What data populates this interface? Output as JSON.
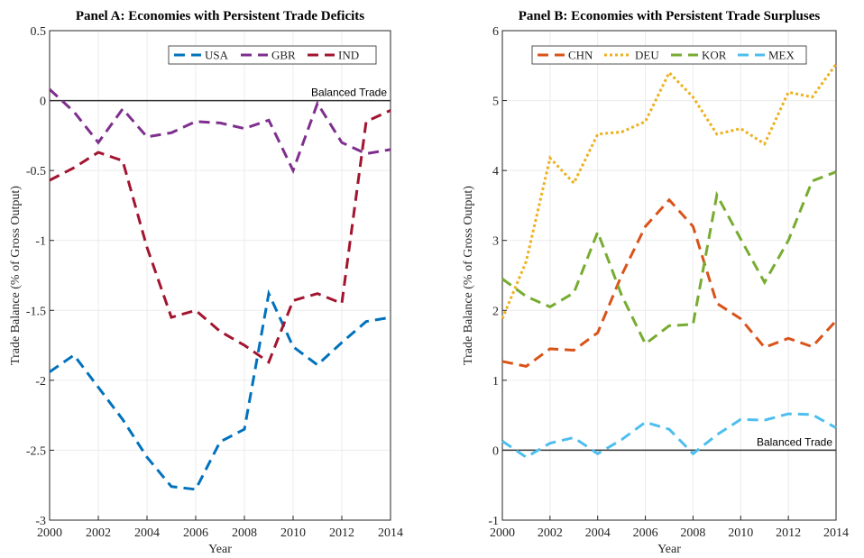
{
  "chart_data": [
    {
      "type": "line",
      "title": "Panel A: Economies with Persistent Trade Deficits",
      "xlabel": "Year",
      "ylabel": "Trade Balance (% of Gross Output)",
      "x": [
        2000,
        2001,
        2002,
        2003,
        2004,
        2005,
        2006,
        2007,
        2008,
        2009,
        2010,
        2011,
        2012,
        2013,
        2014
      ],
      "series": [
        {
          "name": "USA",
          "color": "#0072BD",
          "dash": "dashed",
          "values": [
            -1.94,
            -1.82,
            -2.05,
            -2.28,
            -2.55,
            -2.76,
            -2.78,
            -2.44,
            -2.35,
            -1.38,
            -1.76,
            -1.89,
            -1.73,
            -1.58,
            -1.55
          ]
        },
        {
          "name": "GBR",
          "color": "#7E2F8E",
          "dash": "dashed",
          "values": [
            0.08,
            -0.08,
            -0.3,
            -0.06,
            -0.26,
            -0.23,
            -0.15,
            -0.16,
            -0.2,
            -0.14,
            -0.5,
            -0.02,
            -0.3,
            -0.38,
            -0.35
          ]
        },
        {
          "name": "IND",
          "color": "#A2142F",
          "dash": "dashed",
          "values": [
            -0.57,
            -0.48,
            -0.37,
            -0.43,
            -1.05,
            -1.55,
            -1.5,
            -1.65,
            -1.75,
            -1.87,
            -1.43,
            -1.38,
            -1.45,
            -0.15,
            -0.07
          ]
        }
      ],
      "reference_line": 0,
      "annotation": "Balanced Trade",
      "xlim": [
        2000,
        2014
      ],
      "xticks": [
        2000,
        2002,
        2004,
        2006,
        2008,
        2010,
        2012,
        2014
      ],
      "ylim": [
        -3,
        0.5
      ],
      "yticks": [
        -3,
        -2.5,
        -2,
        -1.5,
        -1,
        -0.5,
        0,
        0.5
      ],
      "grid": true,
      "legend": "northeast"
    },
    {
      "type": "line",
      "title": "Panel B: Economies with Persistent Trade Surpluses",
      "xlabel": "Year",
      "ylabel": "Trade Balance (% of Gross Output)",
      "x": [
        2000,
        2001,
        2002,
        2003,
        2004,
        2005,
        2006,
        2007,
        2008,
        2009,
        2010,
        2011,
        2012,
        2013,
        2014
      ],
      "series": [
        {
          "name": "CHN",
          "color": "#D95319",
          "dash": "dashed",
          "values": [
            1.27,
            1.2,
            1.45,
            1.43,
            1.68,
            2.5,
            3.2,
            3.58,
            3.2,
            2.1,
            1.88,
            1.47,
            1.6,
            1.48,
            1.85
          ]
        },
        {
          "name": "DEU",
          "color": "#EDB120",
          "dash": "dotted",
          "values": [
            1.88,
            2.7,
            4.18,
            3.82,
            4.52,
            4.55,
            4.7,
            5.4,
            5.05,
            4.52,
            4.6,
            4.38,
            5.12,
            5.05,
            5.52
          ]
        },
        {
          "name": "KOR",
          "color": "#77AC30",
          "dash": "dashed",
          "values": [
            2.45,
            2.2,
            2.05,
            2.25,
            3.12,
            2.22,
            1.52,
            1.78,
            1.8,
            3.65,
            3.02,
            2.4,
            3.0,
            3.85,
            3.98
          ]
        },
        {
          "name": "MEX",
          "color": "#4DBEEE",
          "dash": "dashed",
          "values": [
            0.13,
            -0.1,
            0.1,
            0.18,
            -0.05,
            0.15,
            0.4,
            0.3,
            -0.05,
            0.22,
            0.44,
            0.43,
            0.52,
            0.51,
            0.32
          ]
        }
      ],
      "reference_line": 0,
      "annotation": "Balanced Trade",
      "xlim": [
        2000,
        2014
      ],
      "xticks": [
        2000,
        2002,
        2004,
        2006,
        2008,
        2010,
        2012,
        2014
      ],
      "ylim": [
        -1,
        6
      ],
      "yticks": [
        -1,
        0,
        1,
        2,
        3,
        4,
        5,
        6
      ],
      "grid": true,
      "legend": "north"
    }
  ]
}
